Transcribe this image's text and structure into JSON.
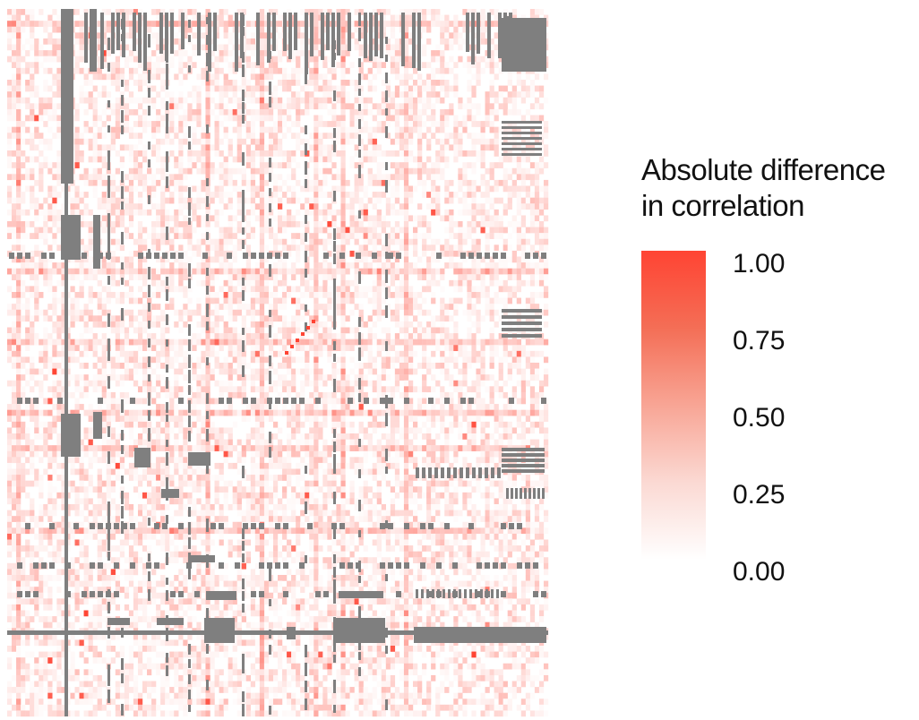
{
  "chart_data": {
    "type": "heatmap",
    "title": "",
    "description_note": "",
    "colorbar": {
      "title_lines": [
        "Absolute difference",
        "in correlation"
      ],
      "min": 0.0,
      "max": 1.0,
      "ticks": [
        "1.00",
        "0.75",
        "0.50",
        "0.25",
        "0.00"
      ],
      "tick_values": [
        1.0,
        0.75,
        0.5,
        0.25,
        0.0
      ],
      "color_low": "#ffffff",
      "color_high": "#ff4433"
    },
    "missing_color": "#7f7f7f",
    "grid_size": 120,
    "value_distribution": "mostly near 0.00-0.25, sparse values up to 1.00; grey cells denote missing values"
  }
}
